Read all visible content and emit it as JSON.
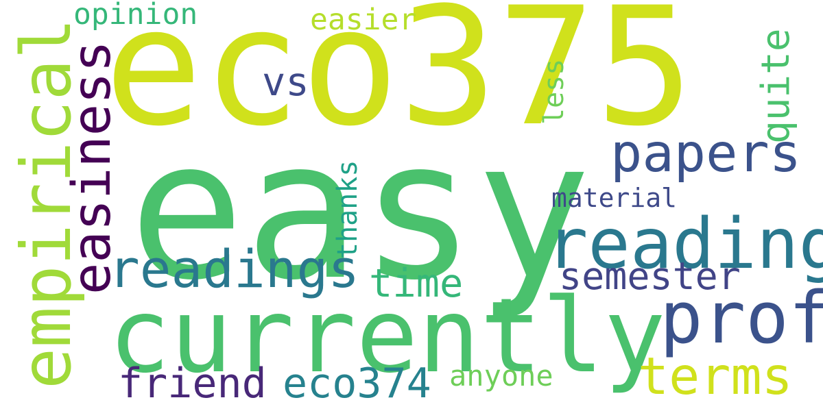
{
  "words": [
    {
      "key": "eco375",
      "text": "eco375",
      "color": "#d0e11c",
      "rotated": false
    },
    {
      "key": "easy",
      "text": "easy",
      "color": "#4ac16d",
      "rotated": false
    },
    {
      "key": "currently",
      "text": "currently",
      "color": "#4ac16d",
      "rotated": false
    },
    {
      "key": "reading",
      "text": "reading",
      "color": "#2a788e",
      "rotated": false
    },
    {
      "key": "prof",
      "text": "prof",
      "color": "#3b528b",
      "rotated": false
    },
    {
      "key": "empirical",
      "text": "empirical",
      "color": "#a0da39",
      "rotated": true
    },
    {
      "key": "easiness",
      "text": "easiness",
      "color": "#440154",
      "rotated": true
    },
    {
      "key": "papers",
      "text": "papers",
      "color": "#3b528b",
      "rotated": false
    },
    {
      "key": "readings",
      "text": "readings",
      "color": "#2a788e",
      "rotated": false
    },
    {
      "key": "terms",
      "text": "terms",
      "color": "#d0e11c",
      "rotated": false
    },
    {
      "key": "semester",
      "text": "semester",
      "color": "#414487",
      "rotated": false
    },
    {
      "key": "friend",
      "text": "friend",
      "color": "#482878",
      "rotated": false
    },
    {
      "key": "eco374",
      "text": "eco374",
      "color": "#26828e",
      "rotated": false
    },
    {
      "key": "time",
      "text": "time",
      "color": "#35b779",
      "rotated": false
    },
    {
      "key": "quite",
      "text": "quite",
      "color": "#4ac16d",
      "rotated": true
    },
    {
      "key": "vs",
      "text": "vs",
      "color": "#3e4989",
      "rotated": false
    },
    {
      "key": "easier",
      "text": "easier",
      "color": "#b5de2b",
      "rotated": false
    },
    {
      "key": "opinion",
      "text": "opinion",
      "color": "#35b779",
      "rotated": false
    },
    {
      "key": "anyone",
      "text": "anyone",
      "color": "#6ece58",
      "rotated": false
    },
    {
      "key": "thanks",
      "text": "thanks",
      "color": "#1fa187",
      "rotated": true
    },
    {
      "key": "less",
      "text": "less",
      "color": "#6ece58",
      "rotated": true
    },
    {
      "key": "material",
      "text": "material",
      "color": "#3e4989",
      "rotated": false
    }
  ]
}
